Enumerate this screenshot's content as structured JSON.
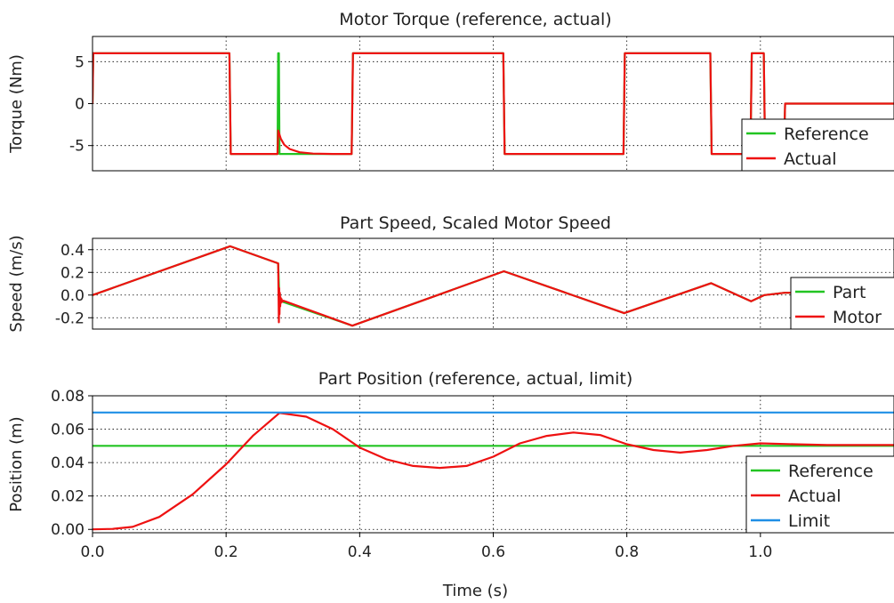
{
  "colors": {
    "reference": "#22c422",
    "actual": "#ee1111",
    "limit": "#1f8fe6"
  },
  "chart_data": [
    {
      "type": "line",
      "title": "Motor Torque (reference, actual)",
      "xlabel": "",
      "ylabel": "Torque (Nm)",
      "xlim": [
        0,
        1.2
      ],
      "ylim": [
        -8,
        8
      ],
      "yticks": [
        -5,
        0,
        5
      ],
      "ytick_labels": [
        "-5",
        "0",
        "5"
      ],
      "grid": true,
      "legend": "bottom-right",
      "series": [
        {
          "name": "Reference",
          "color": "#22c422",
          "x": [
            0,
            0.001,
            0.205,
            0.207,
            0.277,
            0.278,
            0.279,
            0.28,
            0.388,
            0.39,
            0.615,
            0.617,
            0.795,
            0.797,
            0.925,
            0.927,
            0.985,
            0.987,
            1.005,
            1.007,
            1.035,
            1.037,
            1.06,
            1.2
          ],
          "y": [
            0,
            6,
            6,
            -6,
            -6,
            6,
            6,
            -6,
            -6,
            6,
            6,
            -6,
            -6,
            6,
            6,
            -6,
            -6,
            6,
            6,
            -6,
            -6,
            0,
            0,
            0
          ]
        },
        {
          "name": "Actual",
          "color": "#ee1111",
          "x": [
            0,
            0.001,
            0.205,
            0.207,
            0.277,
            0.278,
            0.282,
            0.287,
            0.295,
            0.31,
            0.33,
            0.36,
            0.388,
            0.39,
            0.615,
            0.617,
            0.795,
            0.797,
            0.925,
            0.927,
            0.985,
            0.987,
            1.005,
            1.007,
            1.035,
            1.037,
            1.06,
            1.2
          ],
          "y": [
            0,
            6,
            6,
            -6,
            -6,
            -3.2,
            -4.2,
            -4.9,
            -5.4,
            -5.8,
            -5.95,
            -6,
            -6,
            6,
            6,
            -6,
            -6,
            6,
            6,
            -6,
            -6,
            6,
            6,
            -6,
            -6,
            0,
            0,
            0
          ]
        }
      ]
    },
    {
      "type": "line",
      "title": "Part Speed, Scaled Motor Speed",
      "xlabel": "",
      "ylabel": "Speed (m/s)",
      "xlim": [
        0,
        1.2
      ],
      "ylim": [
        -0.3,
        0.5
      ],
      "yticks": [
        -0.2,
        0.0,
        0.2,
        0.4
      ],
      "ytick_labels": [
        "-0.2",
        "0.0",
        "0.2",
        "0.4"
      ],
      "grid": true,
      "legend": "bottom-right",
      "series": [
        {
          "name": "Part",
          "color": "#22c422",
          "x": [
            0,
            0.206,
            0.278,
            0.28,
            0.389,
            0.616,
            0.796,
            0.926,
            0.986,
            1.006,
            1.036,
            1.2
          ],
          "y": [
            0,
            0.43,
            0.28,
            -0.05,
            -0.27,
            0.21,
            -0.16,
            0.105,
            -0.055,
            0.0,
            0.02,
            0.02
          ]
        },
        {
          "name": "Motor",
          "color": "#ee1111",
          "x": [
            0,
            0.206,
            0.278,
            0.279,
            0.2795,
            0.28,
            0.2805,
            0.281,
            0.2815,
            0.282,
            0.283,
            0.284,
            0.286,
            0.389,
            0.616,
            0.796,
            0.926,
            0.986,
            1.006,
            1.036,
            1.2
          ],
          "y": [
            0,
            0.43,
            0.28,
            -0.24,
            0.06,
            -0.17,
            0.02,
            -0.1,
            -0.02,
            -0.07,
            -0.035,
            -0.06,
            -0.05,
            -0.27,
            0.21,
            -0.16,
            0.105,
            -0.055,
            0.0,
            0.02,
            0.02
          ]
        }
      ]
    },
    {
      "type": "line",
      "title": "Part Position (reference, actual, limit)",
      "xlabel": "Time (s)",
      "ylabel": "Position (m)",
      "xlim": [
        0,
        1.2
      ],
      "ylim": [
        -0.002,
        0.08
      ],
      "xticks": [
        0.0,
        0.2,
        0.4,
        0.6,
        0.8,
        1.0
      ],
      "xtick_labels": [
        "0.0",
        "0.2",
        "0.4",
        "0.6",
        "0.8",
        "1.0"
      ],
      "yticks": [
        0.0,
        0.02,
        0.04,
        0.06,
        0.08
      ],
      "ytick_labels": [
        "0.00",
        "0.02",
        "0.04",
        "0.06",
        "0.08"
      ],
      "grid": true,
      "legend": "bottom-right",
      "series": [
        {
          "name": "Reference",
          "color": "#22c422",
          "x": [
            0,
            1.2
          ],
          "y": [
            0.05,
            0.05
          ]
        },
        {
          "name": "Actual",
          "color": "#ee1111",
          "x": [
            0,
            0.03,
            0.06,
            0.1,
            0.15,
            0.2,
            0.24,
            0.28,
            0.32,
            0.36,
            0.4,
            0.44,
            0.48,
            0.52,
            0.56,
            0.6,
            0.64,
            0.68,
            0.72,
            0.76,
            0.8,
            0.84,
            0.88,
            0.92,
            0.96,
            1.0,
            1.05,
            1.1,
            1.2
          ],
          "y": [
            0,
            0.0003,
            0.0015,
            0.0075,
            0.021,
            0.039,
            0.056,
            0.0697,
            0.0675,
            0.06,
            0.049,
            0.042,
            0.038,
            0.0368,
            0.038,
            0.0435,
            0.0515,
            0.056,
            0.058,
            0.0565,
            0.051,
            0.0475,
            0.046,
            0.0475,
            0.05,
            0.0515,
            0.051,
            0.0505,
            0.0505
          ]
        },
        {
          "name": "Limit",
          "color": "#1f8fe6",
          "x": [
            0,
            1.2
          ],
          "y": [
            0.07,
            0.07
          ]
        }
      ]
    }
  ]
}
